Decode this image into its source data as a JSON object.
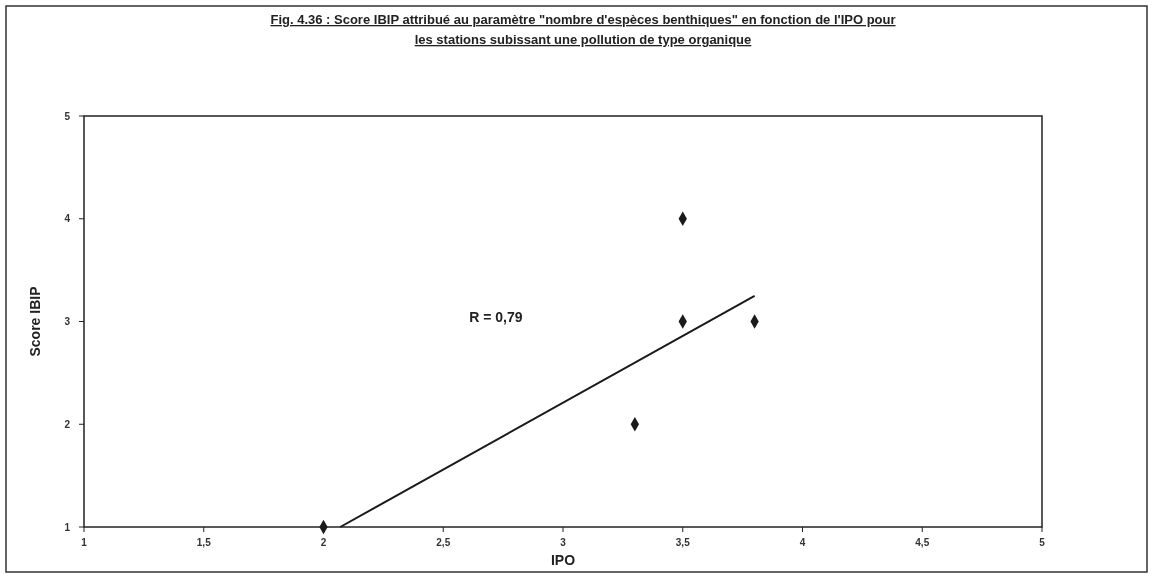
{
  "chart_data": {
    "type": "scatter",
    "title": "Fig. 4.36 : Score IBIP attribué au paramètre \"nombre d'espèces benthiques\" en fonction de l'IPO pour les stations subissant une pollution de type organique",
    "xlabel": "IPO",
    "ylabel": "Score IBIP",
    "annotations": [
      "R = 0,79"
    ],
    "series": [
      {
        "color": "#1a1a1a",
        "marker": "diamond",
        "x": [
          2,
          3.3,
          3.5,
          3.5,
          3.8
        ],
        "values": [
          1,
          2,
          3,
          4,
          3
        ]
      },
      {
        "type": "line",
        "color": "#1a1a1a",
        "marker": "none",
        "line_style": "solid",
        "x": [
          2.07,
          3.8
        ],
        "values": [
          1,
          3.25
        ]
      }
    ],
    "xlim": [
      1,
      5
    ],
    "xticks": [
      1,
      {
        "value": 1.5,
        "label": "1,5"
      },
      2,
      {
        "value": 2.5,
        "label": "2,5"
      },
      3,
      {
        "value": 3.5,
        "label": "3,5"
      },
      4,
      {
        "value": 4.5,
        "label": "4,5"
      },
      5
    ],
    "ylim": [
      1,
      5
    ],
    "yticks": [
      1,
      2,
      3,
      4,
      5
    ],
    "grid": false
  }
}
